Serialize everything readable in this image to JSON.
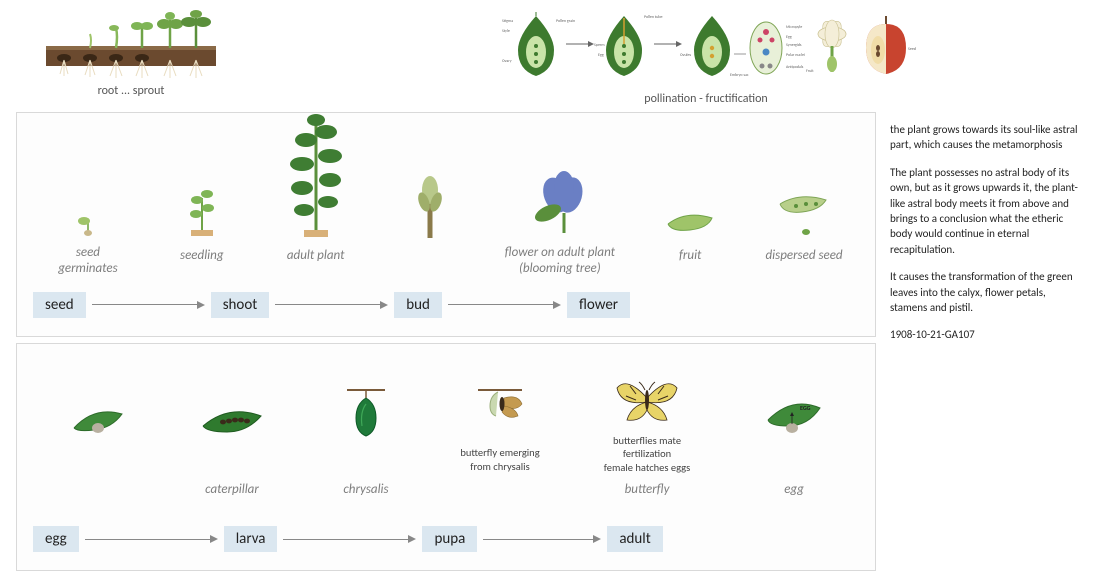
{
  "top": {
    "left_caption": "root  ...  sprout",
    "right_caption": "pollination - fructification"
  },
  "plant_panel": {
    "stages": [
      {
        "label": "seed\ngerminates"
      },
      {
        "label": "seedling"
      },
      {
        "label": "adult plant"
      },
      {
        "label": ""
      },
      {
        "label": "flower on adult plant\n(blooming tree)"
      },
      {
        "label": "fruit"
      },
      {
        "label": "dispersed seed"
      }
    ],
    "sequence": [
      "seed",
      "shoot",
      "bud",
      "flower"
    ],
    "arrow_widths": [
      105,
      105,
      105,
      105
    ]
  },
  "butterfly_panel": {
    "stages": [
      {
        "label": "",
        "sub": ""
      },
      {
        "label": "caterpillar",
        "sub": ""
      },
      {
        "label": "chrysalis",
        "sub": ""
      },
      {
        "label": "",
        "sub": "butterfly emerging\nfrom chrysalis"
      },
      {
        "label": "butterfly",
        "sub": "butterflies mate\nfertilization\nfemale hatches eggs"
      },
      {
        "label": "egg",
        "sub": ""
      }
    ],
    "sequence": [
      "egg",
      "larva",
      "pupa",
      "adult"
    ],
    "arrow_widths": [
      125,
      125,
      110,
      110
    ]
  },
  "side_text": {
    "p1": "the plant grows towards its soul-like astral part, which causes the metamorphosis",
    "p2": "The plant possesses no astral body of its own, but as it grows upwards it, the plant-like astral body meets it from above and brings to a conclusion what the etheric body would continue in eternal recapitulation.",
    "p3": "It causes the transformation of the green leaves into the calyx, flower petals, stamens and pistil.",
    "ref": "1908-10-21-GA107"
  },
  "colors": {
    "seq_box_bg": "#dbe7f0",
    "panel_border": "#d9d9d9",
    "label_grey": "#7d7d7d",
    "arrow_grey": "#888888"
  }
}
